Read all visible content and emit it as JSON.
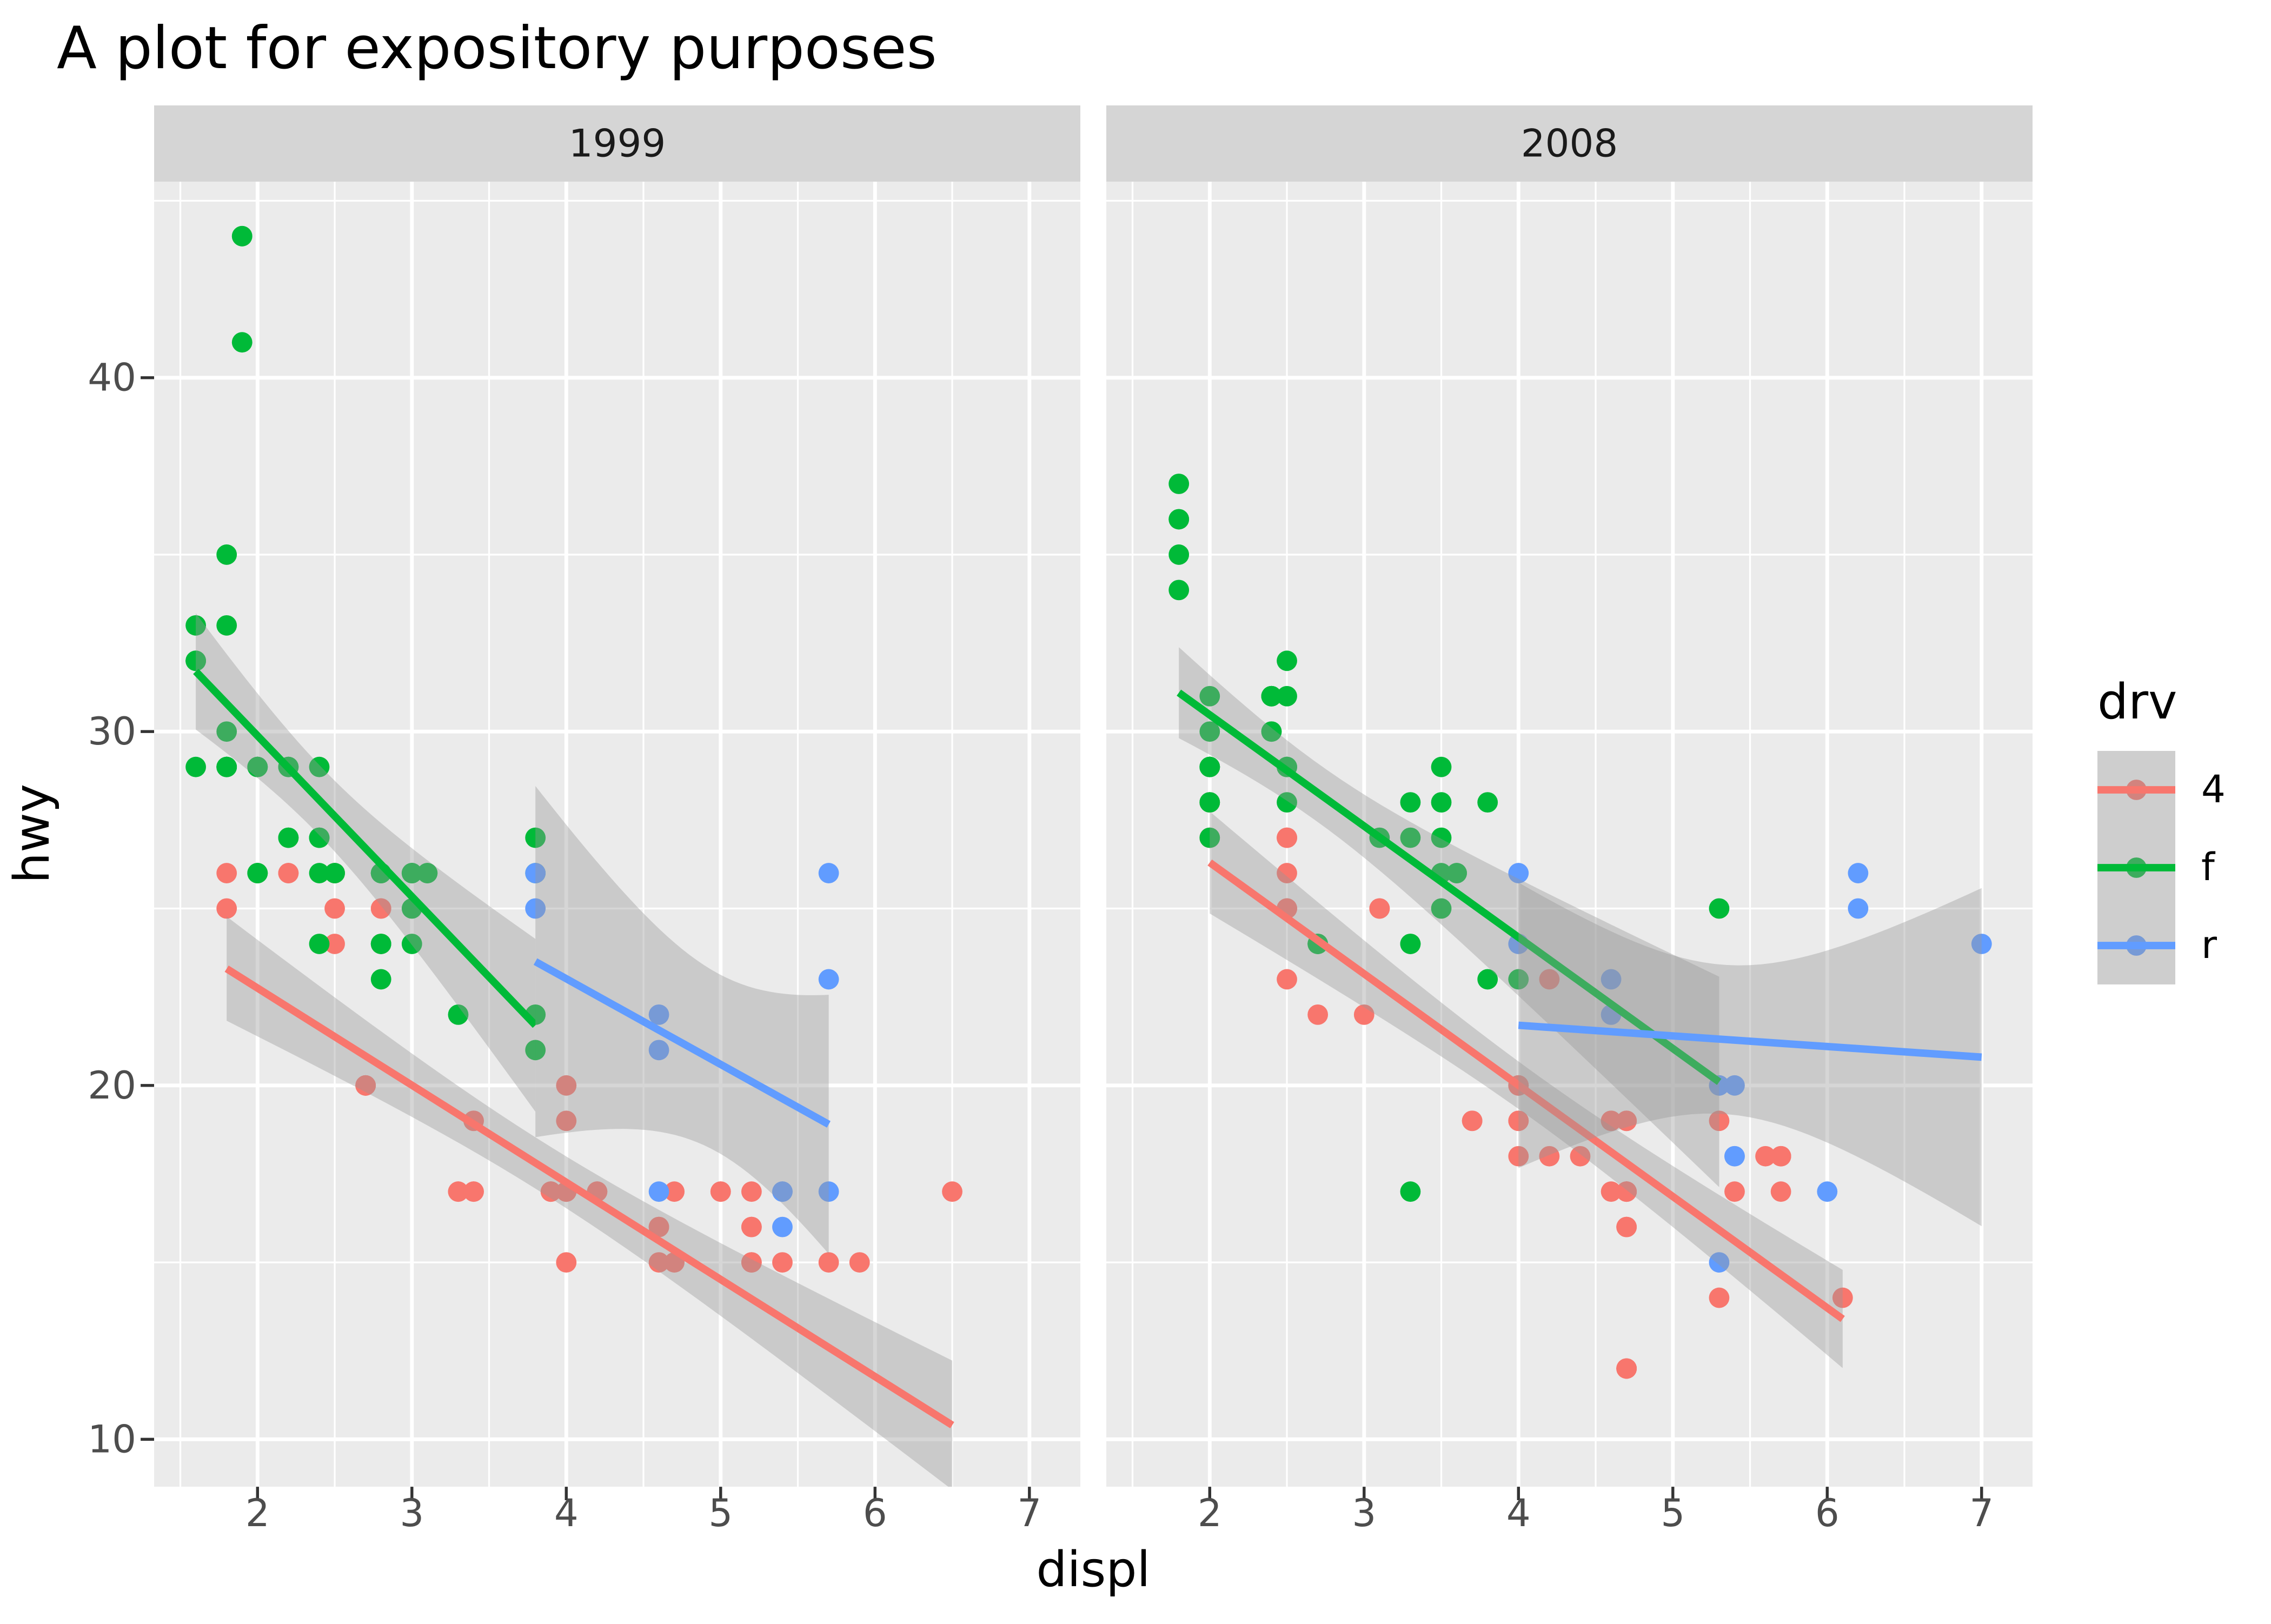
{
  "chart_data": {
    "type": "scatter",
    "title": "A plot for expository purposes",
    "xlabel": "displ",
    "ylabel": "hwy",
    "x_ticks": [
      2,
      3,
      4,
      5,
      6,
      7
    ],
    "y_ticks": [
      10,
      20,
      30,
      40
    ],
    "x_minor": [
      1.5,
      2.5,
      3.5,
      4.5,
      5.5,
      6.5
    ],
    "y_minor": [
      15,
      25,
      35,
      45
    ],
    "x_domain": [
      1.33,
      7.33
    ],
    "y_domain": [
      8.66,
      45.54
    ],
    "grid": "on",
    "panel_bg": "#EBEBEB",
    "strip_bg": "#D5D5D5",
    "grid_color": "#FFFFFF",
    "tick_label_color": "#4D4D4D",
    "tick_mark_color": "#333333",
    "ribbon_color": "#999999",
    "ribbon_alpha": 0.4,
    "legend": {
      "title": "drv",
      "position": "right",
      "entries": [
        {
          "label": "4",
          "color": "#F8766D"
        },
        {
          "label": "f",
          "color": "#00BA38"
        },
        {
          "label": "r",
          "color": "#619CFF"
        }
      ]
    },
    "facets": [
      {
        "label": "1999",
        "groups": [
          {
            "drv": "4",
            "color": "#F8766D",
            "smooth": {
              "x0": 1.8,
              "y0": 23.3,
              "x1": 6.5,
              "y1": 10.4
            },
            "points": [
              [
                1.8,
                26
              ],
              [
                1.8,
                25
              ],
              [
                2.8,
                25
              ],
              [
                2.8,
                25
              ],
              [
                2.8,
                24
              ],
              [
                5.7,
                15
              ],
              [
                6.5,
                17
              ],
              [
                3.9,
                17
              ],
              [
                3.9,
                17
              ],
              [
                5.2,
                17
              ],
              [
                5.2,
                15
              ],
              [
                3.9,
                17
              ],
              [
                5.2,
                16
              ],
              [
                5.2,
                15
              ],
              [
                5.2,
                16
              ],
              [
                5.9,
                15
              ],
              [
                4.0,
                17
              ],
              [
                4.0,
                19
              ],
              [
                4.0,
                17
              ],
              [
                5.0,
                17
              ],
              [
                4.2,
                17
              ],
              [
                4.2,
                17
              ],
              [
                4.6,
                16
              ],
              [
                4.6,
                16
              ],
              [
                5.4,
                15
              ],
              [
                4.0,
                20
              ],
              [
                4.7,
                17
              ],
              [
                4.0,
                15
              ],
              [
                4.6,
                15
              ],
              [
                4.0,
                17
              ],
              [
                5.0,
                17
              ],
              [
                3.3,
                17
              ],
              [
                3.3,
                17
              ],
              [
                2.5,
                25
              ],
              [
                2.5,
                24
              ],
              [
                2.2,
                26
              ],
              [
                2.2,
                26
              ],
              [
                2.5,
                26
              ],
              [
                2.5,
                26
              ],
              [
                2.7,
                20
              ],
              [
                2.7,
                20
              ],
              [
                3.4,
                19
              ],
              [
                3.4,
                17
              ],
              [
                2.7,
                20
              ],
              [
                2.7,
                20
              ],
              [
                3.4,
                17
              ],
              [
                3.4,
                19
              ],
              [
                4.7,
                15
              ]
            ]
          },
          {
            "drv": "f",
            "color": "#00BA38",
            "smooth": {
              "x0": 1.6,
              "y0": 31.7,
              "x1": 3.8,
              "y1": 21.7
            },
            "points": [
              [
                1.8,
                29
              ],
              [
                1.8,
                29
              ],
              [
                2.8,
                26
              ],
              [
                2.8,
                26
              ],
              [
                2.4,
                27
              ],
              [
                3.1,
                26
              ],
              [
                2.4,
                24
              ],
              [
                3.0,
                24
              ],
              [
                3.3,
                22
              ],
              [
                3.8,
                22
              ],
              [
                3.8,
                21
              ],
              [
                1.6,
                33
              ],
              [
                1.6,
                32
              ],
              [
                1.6,
                32
              ],
              [
                1.6,
                29
              ],
              [
                1.6,
                32
              ],
              [
                2.4,
                26
              ],
              [
                2.4,
                27
              ],
              [
                2.5,
                26
              ],
              [
                2.5,
                26
              ],
              [
                2.0,
                26
              ],
              [
                2.0,
                29
              ],
              [
                3.0,
                26
              ],
              [
                3.0,
                25
              ],
              [
                2.4,
                29
              ],
              [
                2.4,
                27
              ],
              [
                3.1,
                26
              ],
              [
                3.8,
                26
              ],
              [
                3.8,
                27
              ],
              [
                2.2,
                29
              ],
              [
                2.2,
                27
              ],
              [
                3.0,
                26
              ],
              [
                3.0,
                26
              ],
              [
                2.2,
                27
              ],
              [
                2.2,
                29
              ],
              [
                3.0,
                26
              ],
              [
                1.8,
                30
              ],
              [
                1.8,
                33
              ],
              [
                1.8,
                35
              ],
              [
                2.0,
                29
              ],
              [
                2.0,
                26
              ],
              [
                2.8,
                24
              ],
              [
                1.9,
                44
              ],
              [
                2.0,
                29
              ],
              [
                2.0,
                26
              ],
              [
                2.8,
                23
              ],
              [
                2.8,
                24
              ],
              [
                1.9,
                44
              ],
              [
                1.9,
                41
              ],
              [
                2.0,
                29
              ],
              [
                2.0,
                26
              ],
              [
                1.8,
                29
              ],
              [
                1.8,
                29
              ],
              [
                2.8,
                26
              ],
              [
                2.8,
                26
              ]
            ]
          },
          {
            "drv": "r",
            "color": "#619CFF",
            "smooth": {
              "x0": 3.8,
              "y0": 23.5,
              "x1": 5.7,
              "y1": 18.9
            },
            "points": [
              [
                5.7,
                17
              ],
              [
                5.7,
                26
              ],
              [
                5.7,
                23
              ],
              [
                4.6,
                17
              ],
              [
                5.4,
                17
              ],
              [
                3.8,
                26
              ],
              [
                3.8,
                25
              ],
              [
                4.6,
                21
              ],
              [
                4.6,
                22
              ],
              [
                5.4,
                17
              ],
              [
                5.4,
                16
              ]
            ]
          }
        ]
      },
      {
        "label": "2008",
        "groups": [
          {
            "drv": "4",
            "color": "#F8766D",
            "smooth": {
              "x0": 2.0,
              "y0": 26.3,
              "x1": 6.1,
              "y1": 13.4
            },
            "points": [
              [
                2.0,
                28
              ],
              [
                2.0,
                27
              ],
              [
                3.1,
                25
              ],
              [
                3.1,
                25
              ],
              [
                3.1,
                25
              ],
              [
                4.2,
                23
              ],
              [
                5.3,
                19
              ],
              [
                5.3,
                14
              ],
              [
                3.7,
                19
              ],
              [
                4.7,
                19
              ],
              [
                4.7,
                19
              ],
              [
                4.7,
                12
              ],
              [
                4.7,
                17
              ],
              [
                4.7,
                12
              ],
              [
                4.7,
                17
              ],
              [
                5.7,
                18
              ],
              [
                4.7,
                16
              ],
              [
                4.7,
                12
              ],
              [
                4.7,
                17
              ],
              [
                4.7,
                17
              ],
              [
                4.7,
                16
              ],
              [
                5.7,
                17
              ],
              [
                4.0,
                19
              ],
              [
                4.6,
                19
              ],
              [
                4.6,
                17
              ],
              [
                5.4,
                17
              ],
              [
                3.0,
                22
              ],
              [
                3.7,
                19
              ],
              [
                4.7,
                12
              ],
              [
                4.7,
                19
              ],
              [
                5.7,
                18
              ],
              [
                6.1,
                14
              ],
              [
                4.2,
                18
              ],
              [
                4.4,
                18
              ],
              [
                4.0,
                19
              ],
              [
                4.6,
                19
              ],
              [
                4.0,
                20
              ],
              [
                5.6,
                18
              ],
              [
                2.5,
                27
              ],
              [
                2.5,
                25
              ],
              [
                2.5,
                26
              ],
              [
                2.5,
                23
              ],
              [
                2.5,
                25
              ],
              [
                2.5,
                27
              ],
              [
                2.5,
                25
              ],
              [
                2.5,
                27
              ],
              [
                4.0,
                20
              ],
              [
                4.7,
                17
              ],
              [
                2.7,
                22
              ],
              [
                4.0,
                18
              ],
              [
                4.0,
                20
              ],
              [
                5.7,
                18
              ]
            ]
          },
          {
            "drv": "f",
            "color": "#00BA38",
            "smooth": {
              "x0": 1.8,
              "y0": 31.1,
              "x1": 5.3,
              "y1": 20.1
            },
            "points": [
              [
                2.0,
                31
              ],
              [
                2.0,
                30
              ],
              [
                3.1,
                27
              ],
              [
                2.4,
                30
              ],
              [
                3.5,
                29
              ],
              [
                3.6,
                26
              ],
              [
                3.3,
                24
              ],
              [
                3.3,
                24
              ],
              [
                3.3,
                17
              ],
              [
                3.8,
                23
              ],
              [
                4.0,
                23
              ],
              [
                1.8,
                34
              ],
              [
                1.8,
                36
              ],
              [
                1.8,
                36
              ],
              [
                2.0,
                29
              ],
              [
                2.4,
                30
              ],
              [
                2.4,
                31
              ],
              [
                3.3,
                28
              ],
              [
                2.0,
                28
              ],
              [
                2.0,
                27
              ],
              [
                2.7,
                24
              ],
              [
                2.7,
                24
              ],
              [
                2.7,
                24
              ],
              [
                2.5,
                31
              ],
              [
                2.5,
                32
              ],
              [
                3.5,
                27
              ],
              [
                3.5,
                26
              ],
              [
                3.5,
                25
              ],
              [
                3.8,
                28
              ],
              [
                5.3,
                25
              ],
              [
                2.4,
                31
              ],
              [
                2.4,
                31
              ],
              [
                3.5,
                28
              ],
              [
                2.4,
                31
              ],
              [
                2.4,
                31
              ],
              [
                3.3,
                27
              ],
              [
                1.8,
                37
              ],
              [
                1.8,
                35
              ],
              [
                2.0,
                29
              ],
              [
                2.0,
                29
              ],
              [
                2.0,
                29
              ],
              [
                2.0,
                29
              ],
              [
                2.5,
                29
              ],
              [
                2.5,
                29
              ],
              [
                2.5,
                28
              ],
              [
                2.5,
                29
              ],
              [
                2.0,
                28
              ],
              [
                2.0,
                29
              ],
              [
                3.6,
                26
              ]
            ]
          },
          {
            "drv": "r",
            "color": "#619CFF",
            "smooth": {
              "x0": 4.0,
              "y0": 21.7,
              "x1": 7.0,
              "y1": 20.8
            },
            "points": [
              [
                5.3,
                20
              ],
              [
                5.3,
                15
              ],
              [
                5.3,
                20
              ],
              [
                6.0,
                17
              ],
              [
                6.2,
                26
              ],
              [
                6.2,
                25
              ],
              [
                7.0,
                24
              ],
              [
                5.4,
                18
              ],
              [
                4.0,
                26
              ],
              [
                4.0,
                24
              ],
              [
                4.6,
                23
              ],
              [
                4.6,
                22
              ],
              [
                5.4,
                20
              ],
              [
                5.4,
                18
              ]
            ]
          }
        ]
      }
    ]
  }
}
